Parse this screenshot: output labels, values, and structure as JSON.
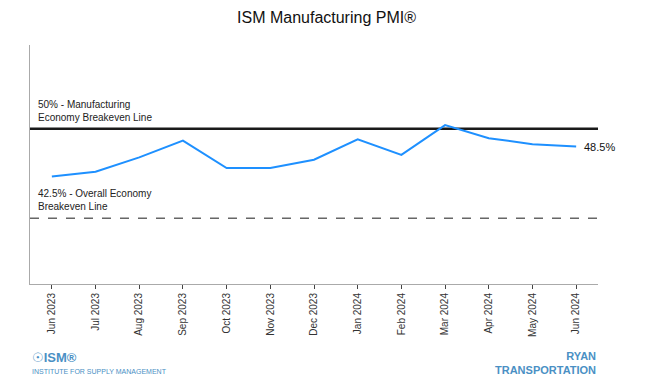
{
  "chart_data": {
    "type": "line",
    "title": "ISM Manufacturing PMI®",
    "categories": [
      "Jun 2023",
      "Jul 2023",
      "Aug 2023",
      "Sep 2023",
      "Oct 2023",
      "Nov 2023",
      "Dec 2023",
      "Jan 2024",
      "Feb 2024",
      "Mar 2024",
      "Apr 2024",
      "May 2024",
      "Jun 2024"
    ],
    "values": [
      46.0,
      46.4,
      47.6,
      49.0,
      46.7,
      46.7,
      47.4,
      49.1,
      47.8,
      50.3,
      49.2,
      48.7,
      48.5
    ],
    "value_labels": [
      null,
      null,
      null,
      null,
      null,
      null,
      null,
      null,
      null,
      null,
      null,
      null,
      "48.5%"
    ],
    "color": "#1e90ff",
    "ylim": [
      37,
      57
    ],
    "yticks": [],
    "tick_labels": "x",
    "grid": false,
    "reference_lines": [
      {
        "value": 50.0,
        "label": "50% - Manufacturing\nEconomy Breakeven Line",
        "color": "#1a1a1a",
        "line_style": "solid"
      },
      {
        "value": 42.5,
        "label": "42.5% - Overall Economy\nBreakeven Line",
        "color": "#666666",
        "line_style": "dashed"
      }
    ],
    "logo_texts": [
      "☉ISM®",
      "INSTITUTE FOR SUPPLY MANAGEMENT",
      "RYAN\nTRANSPORTATION"
    ],
    "logo_color": "#4a90c4"
  }
}
